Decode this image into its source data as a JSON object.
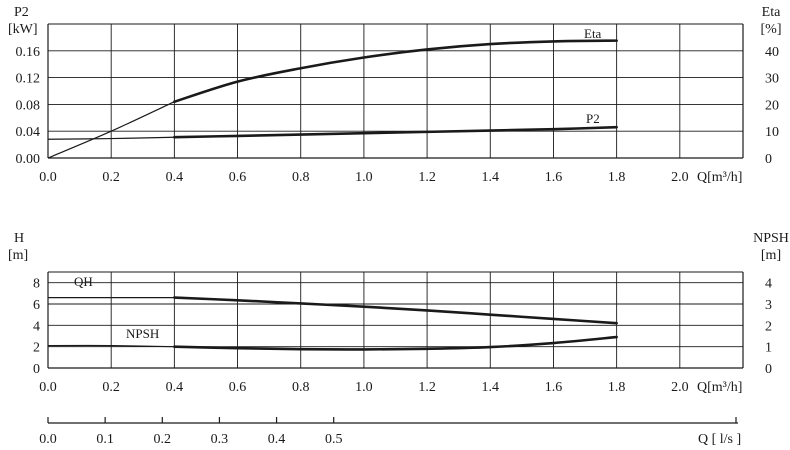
{
  "chart_data": [
    {
      "type": "line",
      "left_axis": {
        "label": "P2",
        "unit": "[kW]",
        "range": [
          0,
          0.2
        ],
        "ticks": [
          "0.00",
          "0.04",
          "0.08",
          "0.12",
          "0.16"
        ],
        "tick_values": [
          0,
          0.04,
          0.08,
          0.12,
          0.16
        ]
      },
      "right_axis": {
        "label": "Eta",
        "unit": "[%]",
        "range": [
          0,
          50
        ],
        "ticks": [
          "0",
          "10",
          "20",
          "30",
          "40"
        ],
        "tick_values": [
          0,
          10,
          20,
          30,
          40
        ]
      },
      "x_axis": {
        "label": "Q[m³/h]",
        "range": [
          0,
          2.2
        ],
        "ticks": [
          "0.0",
          "0.2",
          "0.4",
          "0.6",
          "0.8",
          "1.0",
          "1.2",
          "1.4",
          "1.6",
          "1.8",
          "2.0"
        ],
        "tick_values": [
          0,
          0.2,
          0.4,
          0.6,
          0.8,
          1.0,
          1.2,
          1.4,
          1.6,
          1.8,
          2.0
        ]
      },
      "series": [
        {
          "name": "Eta",
          "axis": "right",
          "x": [
            0,
            0.2,
            0.4,
            0.6,
            0.8,
            1.0,
            1.2,
            1.4,
            1.6,
            1.8
          ],
          "y": [
            0,
            10,
            21,
            28.5,
            33.5,
            37.5,
            40.5,
            42.5,
            43.5,
            43.8
          ],
          "dashed_until": 0.4
        },
        {
          "name": "P2",
          "axis": "left",
          "x": [
            0,
            0.2,
            0.4,
            0.6,
            0.8,
            1.0,
            1.2,
            1.4,
            1.6,
            1.8
          ],
          "y": [
            0.028,
            0.029,
            0.031,
            0.033,
            0.035,
            0.037,
            0.039,
            0.041,
            0.043,
            0.046
          ],
          "dashed_until": 0.4
        }
      ]
    },
    {
      "type": "line",
      "left_axis": {
        "label": "H",
        "unit": "[m]",
        "range": [
          0,
          9
        ],
        "ticks": [
          "0",
          "2",
          "4",
          "6",
          "8"
        ],
        "tick_values": [
          0,
          2,
          4,
          6,
          8
        ]
      },
      "right_axis": {
        "label": "NPSH",
        "unit": "[m]",
        "range": [
          0,
          4.5
        ],
        "ticks": [
          "0",
          "1",
          "2",
          "3",
          "4"
        ],
        "tick_values": [
          0,
          1,
          2,
          3,
          4
        ]
      },
      "x_axis": {
        "label": "Q[m³/h]",
        "range": [
          0,
          2.2
        ],
        "ticks": [
          "0.0",
          "0.2",
          "0.4",
          "0.6",
          "0.8",
          "1.0",
          "1.2",
          "1.4",
          "1.6",
          "1.8",
          "2.0"
        ],
        "tick_values": [
          0,
          0.2,
          0.4,
          0.6,
          0.8,
          1.0,
          1.2,
          1.4,
          1.6,
          1.8,
          2.0
        ]
      },
      "secondary_x_axis": {
        "label": "Q [ l/s ]",
        "ticks": [
          "0.0",
          "0.1",
          "0.2",
          "0.3",
          "0.4",
          "0.5"
        ],
        "tick_values": [
          0,
          0.1,
          0.2,
          0.3,
          0.4,
          0.5
        ]
      },
      "series": [
        {
          "name": "QH",
          "axis": "left",
          "x": [
            0,
            0.2,
            0.4,
            0.6,
            0.8,
            1.0,
            1.2,
            1.4,
            1.6,
            1.8
          ],
          "y": [
            6.6,
            6.6,
            6.6,
            6.35,
            6.05,
            5.75,
            5.4,
            5.0,
            4.6,
            4.2
          ],
          "dashed_until": 0.4
        },
        {
          "name": "NPSH",
          "axis": "right",
          "x": [
            0,
            0.2,
            0.4,
            0.6,
            0.8,
            1.0,
            1.2,
            1.4,
            1.6,
            1.8
          ],
          "y": [
            1.05,
            1.05,
            1.0,
            0.93,
            0.88,
            0.87,
            0.9,
            0.98,
            1.17,
            1.45
          ],
          "dashed_until": 0.4
        }
      ]
    }
  ]
}
